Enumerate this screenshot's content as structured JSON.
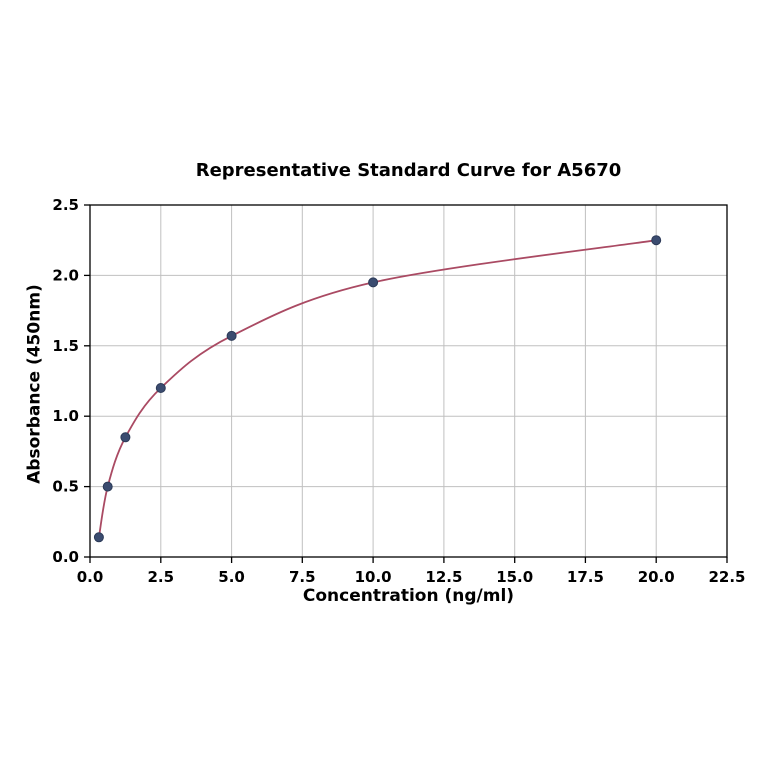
{
  "chart_data": {
    "type": "line",
    "title": "Representative Standard Curve for A5670",
    "xlabel": "Concentration (ng/ml)",
    "ylabel": "Absorbance (450nm)",
    "x": [
      0.313,
      0.625,
      1.25,
      2.5,
      5,
      10,
      20
    ],
    "y": [
      0.14,
      0.5,
      0.85,
      1.2,
      1.57,
      1.95,
      2.25
    ],
    "xlim": [
      0,
      22.5
    ],
    "ylim": [
      0,
      2.5
    ],
    "xticks": [
      0,
      2.5,
      5,
      7.5,
      10,
      12.5,
      15,
      17.5,
      20,
      22.5
    ],
    "xtick_labels": [
      "0.0",
      "2.5",
      "5.0",
      "7.5",
      "10.0",
      "12.5",
      "15.0",
      "17.5",
      "20.0",
      "22.5"
    ],
    "yticks": [
      0,
      0.5,
      1,
      1.5,
      2,
      2.5
    ],
    "ytick_labels": [
      "0.0",
      "0.5",
      "1.0",
      "1.5",
      "2.0",
      "2.5"
    ],
    "grid": true,
    "legend": "none",
    "colors": {
      "line": "#aa4a63",
      "marker": "#3b4c70",
      "marker_edge": "#2c3a57",
      "grid": "#c0c0c0",
      "axis": "#000000",
      "background": "#ffffff"
    }
  }
}
